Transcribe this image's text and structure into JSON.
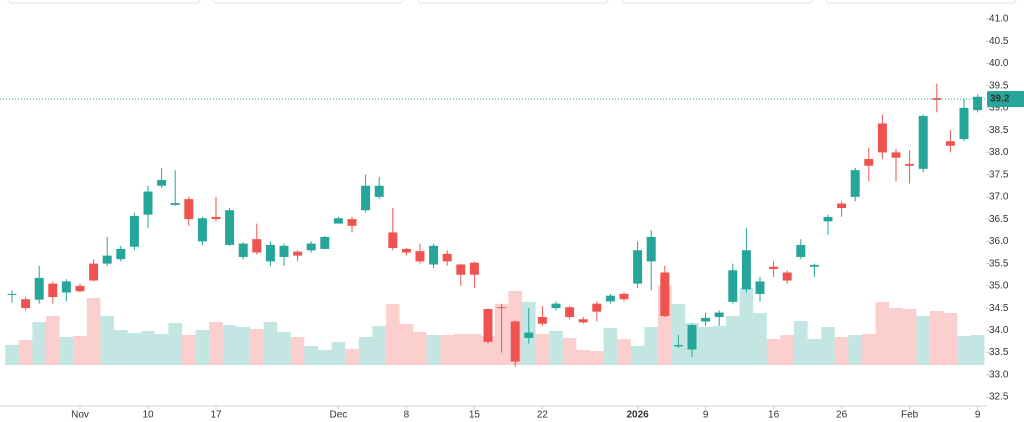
{
  "chart_data": {
    "type": "candlestick",
    "categories": [
      null,
      null,
      null,
      null,
      null,
      "Nov",
      null,
      null,
      null,
      null,
      "10",
      null,
      null,
      null,
      null,
      "17",
      null,
      null,
      null,
      null,
      null,
      null,
      null,
      null,
      "Dec",
      null,
      null,
      null,
      null,
      "8",
      null,
      null,
      null,
      null,
      "15",
      null,
      null,
      null,
      null,
      "22",
      null,
      null,
      null,
      null,
      null,
      null,
      "2026",
      null,
      null,
      null,
      null,
      "9",
      null,
      null,
      null,
      null,
      "16",
      null,
      null,
      null,
      null,
      "26",
      null,
      null,
      null,
      null,
      "Feb",
      null,
      null,
      null,
      null,
      "9"
    ],
    "open": [
      34.8,
      34.7,
      34.69,
      35.05,
      34.85,
      35.0,
      35.5,
      35.5,
      35.6,
      35.88,
      36.6,
      37.25,
      36.82,
      36.95,
      36.0,
      36.55,
      35.92,
      35.65,
      36.05,
      35.55,
      35.65,
      35.77,
      35.8,
      35.83,
      36.4,
      36.5,
      36.7,
      37.0,
      36.2,
      35.83,
      35.78,
      35.48,
      35.72,
      35.48,
      35.52,
      34.48,
      34.52,
      34.2,
      33.83,
      34.3,
      34.5,
      34.52,
      34.25,
      34.6,
      34.65,
      34.82,
      35.05,
      35.55,
      35.3,
      33.64,
      33.57,
      34.2,
      34.3,
      34.64,
      34.92,
      34.82,
      35.43,
      35.3,
      35.65,
      35.43,
      36.45,
      36.85,
      37.0,
      37.85,
      38.65,
      38.0,
      37.74,
      37.63,
      39.22,
      38.25,
      38.3,
      38.95
    ],
    "high": [
      34.9,
      34.75,
      35.45,
      35.1,
      35.15,
      35.05,
      35.6,
      36.1,
      35.9,
      36.65,
      37.25,
      37.65,
      37.6,
      37.0,
      36.55,
      37.0,
      36.75,
      35.98,
      36.4,
      36.0,
      35.95,
      35.8,
      36.0,
      36.12,
      36.55,
      36.55,
      37.5,
      37.45,
      36.75,
      35.85,
      35.95,
      35.95,
      35.8,
      35.5,
      35.55,
      34.5,
      34.6,
      34.22,
      34.5,
      34.55,
      34.65,
      34.55,
      34.3,
      34.65,
      34.82,
      34.85,
      36.0,
      36.25,
      35.45,
      33.9,
      34.15,
      34.4,
      34.45,
      35.5,
      36.3,
      35.2,
      35.55,
      35.35,
      36.05,
      35.5,
      36.6,
      36.9,
      37.65,
      38.1,
      38.85,
      38.08,
      38.05,
      38.85,
      39.55,
      38.5,
      39.2,
      39.3
    ],
    "low": [
      34.62,
      34.45,
      34.6,
      34.6,
      34.65,
      34.85,
      35.1,
      35.45,
      35.55,
      35.8,
      36.3,
      37.2,
      36.8,
      36.35,
      35.92,
      36.45,
      35.9,
      35.6,
      35.7,
      35.45,
      35.45,
      35.55,
      35.75,
      35.82,
      36.4,
      36.2,
      36.65,
      36.95,
      35.8,
      35.68,
      35.5,
      35.4,
      35.45,
      35.0,
      34.95,
      33.7,
      33.5,
      33.18,
      33.7,
      34.1,
      34.45,
      34.25,
      34.15,
      34.2,
      34.6,
      34.65,
      34.95,
      34.9,
      34.3,
      33.6,
      33.4,
      34.1,
      34.1,
      34.6,
      34.85,
      34.65,
      35.2,
      35.05,
      35.6,
      35.2,
      36.15,
      36.55,
      36.9,
      37.35,
      37.85,
      37.35,
      37.3,
      37.55,
      38.9,
      38.0,
      38.25,
      38.9
    ],
    "close": [
      34.82,
      34.5,
      35.18,
      34.75,
      35.1,
      34.88,
      35.12,
      35.68,
      35.83,
      36.57,
      37.12,
      37.38,
      36.86,
      36.5,
      36.52,
      36.5,
      36.7,
      35.95,
      35.75,
      35.92,
      35.9,
      35.68,
      35.95,
      36.1,
      36.52,
      36.35,
      37.25,
      37.25,
      35.85,
      35.75,
      35.55,
      35.9,
      35.55,
      35.25,
      35.25,
      33.74,
      34.5,
      33.3,
      33.95,
      34.15,
      34.6,
      34.3,
      34.18,
      34.42,
      34.78,
      34.7,
      35.8,
      36.1,
      34.32,
      33.67,
      34.12,
      34.28,
      34.4,
      35.35,
      35.8,
      35.1,
      35.38,
      35.12,
      35.92,
      35.47,
      36.55,
      36.75,
      37.6,
      37.7,
      38.0,
      37.88,
      37.7,
      38.82,
      39.18,
      38.15,
      39.0,
      39.25
    ],
    "volume": [
      20,
      25,
      43,
      49,
      28,
      29,
      67,
      49,
      35,
      32,
      34,
      31,
      42,
      30,
      35,
      43,
      40,
      38,
      36,
      43,
      33,
      28,
      19,
      15,
      23,
      16,
      28,
      39,
      61,
      41,
      33,
      30,
      30,
      31,
      31,
      29,
      61,
      74,
      63,
      31,
      34,
      27,
      15,
      14,
      37,
      26,
      19,
      38,
      80,
      61,
      42,
      38,
      39,
      49,
      77,
      52,
      26,
      30,
      44,
      26,
      38,
      28,
      30,
      31,
      63,
      57,
      56,
      49,
      54,
      52,
      29,
      30
    ],
    "up_color": "#26a69a",
    "down_color": "#ef5350",
    "last_price": 39.2,
    "ylim": [
      32.3,
      41.2
    ],
    "yticks": [
      32.5,
      {
        "value": 33,
        "label": "33.0"
      },
      33.5,
      {
        "value": 34,
        "label": "34.0"
      },
      34.5,
      {
        "value": 35,
        "label": "35.0"
      },
      35.5,
      {
        "value": 36,
        "label": "36.0"
      },
      36.5,
      {
        "value": 37,
        "label": "37.0"
      },
      37.5,
      {
        "value": 38,
        "label": "38.0"
      },
      38.5,
      {
        "value": 39,
        "label": "39.0"
      },
      39.5,
      {
        "value": 40,
        "label": "40.0"
      },
      40.5,
      {
        "value": 41,
        "label": "41.0"
      }
    ]
  }
}
